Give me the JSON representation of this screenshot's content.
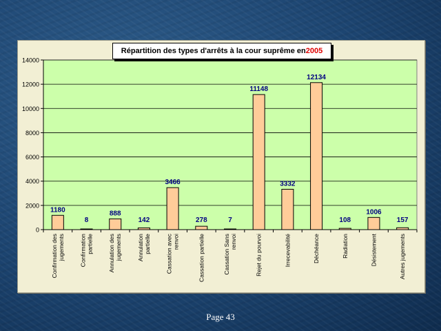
{
  "chart_data": {
    "type": "bar",
    "title_text": "Répartition des types d'arrêts à la cour suprême en ",
    "title_year": "2005",
    "categories": [
      [
        "Confirmation des",
        "jugements"
      ],
      [
        "Confirmation",
        "partielle"
      ],
      [
        "Annulation des",
        "jugements"
      ],
      [
        "Annulation",
        "partielle"
      ],
      [
        "Cassation avec",
        "renvoi"
      ],
      [
        "Cassation partielle"
      ],
      [
        "Cassation Sans",
        "renvoi"
      ],
      [
        "Rejet du pourvoi"
      ],
      [
        "Irrecevabilité"
      ],
      [
        "Déchéance"
      ],
      [
        "Radiation"
      ],
      [
        "Désistement"
      ],
      [
        "Autres jugements"
      ]
    ],
    "values": [
      1180,
      8,
      888,
      142,
      3466,
      278,
      7,
      11148,
      3332,
      12134,
      108,
      1006,
      157
    ],
    "ylim": [
      0,
      14000
    ],
    "yticks": [
      0,
      2000,
      4000,
      6000,
      8000,
      10000,
      12000,
      14000
    ],
    "grid": true,
    "colors": {
      "plot_bg": "#ccffaa",
      "bar_fill": "#ffcc99",
      "bar_stroke": "#000000",
      "data_label": "#000080",
      "title_year": "#e00000"
    }
  },
  "footer": {
    "page_label": "Page 43"
  }
}
